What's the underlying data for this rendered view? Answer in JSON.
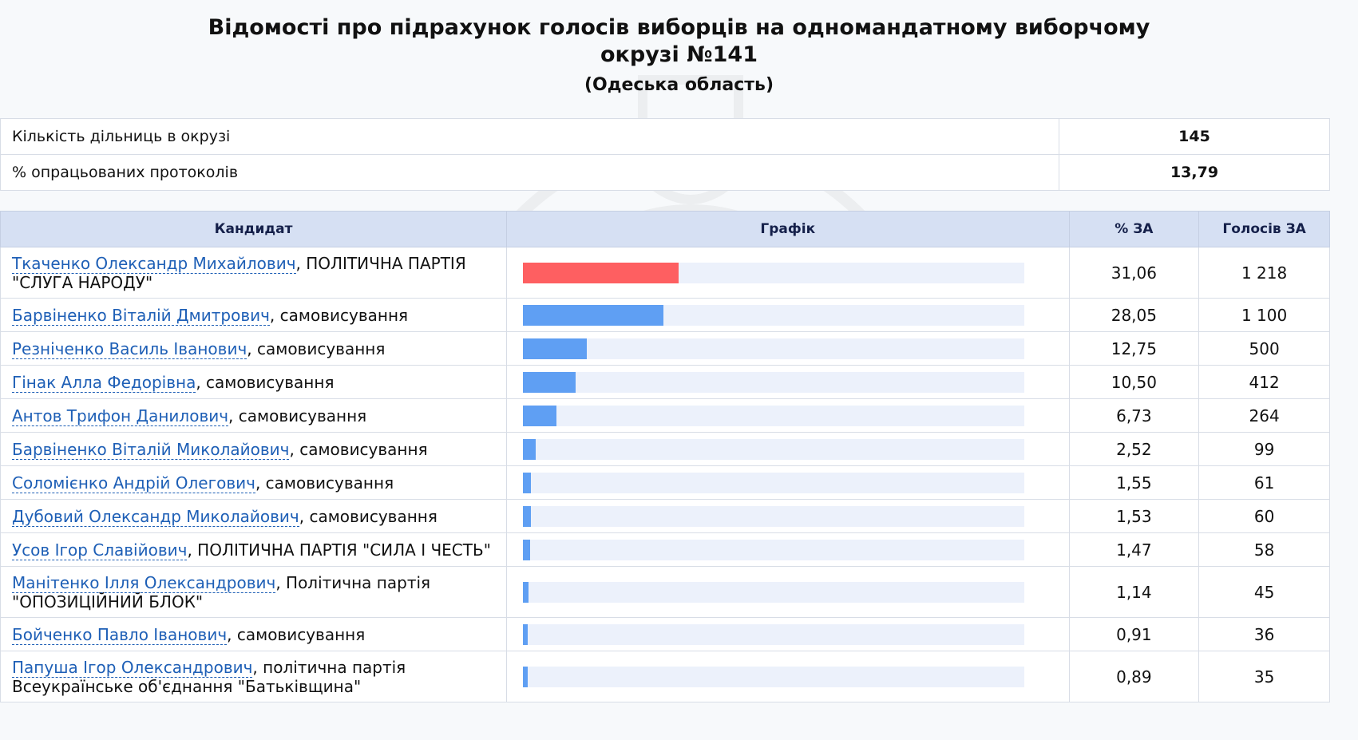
{
  "page": {
    "title": "Відомості про підрахунок голосів виборців на одномандатному виборчому окрузі №141",
    "region": "(Одеська область)"
  },
  "summary": [
    {
      "label": "Кількість дільниць в окрузі",
      "value": "145"
    },
    {
      "label": "% опрацьованих протоколів",
      "value": "13,79"
    }
  ],
  "table": {
    "headers": {
      "candidate": "Кандидат",
      "chart": "Графік",
      "percent": "% ЗА",
      "votes": "Голосів ЗА"
    }
  },
  "candidates": [
    {
      "name": "Ткаченко Олександр Михайлович",
      "party": ", ПОЛІТИЧНА ПАРТІЯ \"СЛУГА НАРОДУ\"",
      "percent": "31,06",
      "votes": "1 218"
    },
    {
      "name": "Барвіненко Віталій Дмитрович",
      "party": ", самовисування",
      "percent": "28,05",
      "votes": "1 100"
    },
    {
      "name": "Резніченко Василь Іванович",
      "party": ", самовисування",
      "percent": "12,75",
      "votes": "500"
    },
    {
      "name": "Гінак Алла Федорівна",
      "party": ", самовисування",
      "percent": "10,50",
      "votes": "412"
    },
    {
      "name": "Антов Трифон Данилович",
      "party": ", самовисування",
      "percent": "6,73",
      "votes": "264"
    },
    {
      "name": "Барвіненко Віталій Миколайович",
      "party": ", самовисування",
      "percent": "2,52",
      "votes": "99"
    },
    {
      "name": "Соломієнко Андрій Олегович",
      "party": ", самовисування",
      "percent": "1,55",
      "votes": "61"
    },
    {
      "name": "Дубовий Олександр Миколайович",
      "party": ", самовисування",
      "percent": "1,53",
      "votes": "60"
    },
    {
      "name": "Усов Ігор Славійович",
      "party": ", ПОЛІТИЧНА ПАРТІЯ \"СИЛА І ЧЕСТЬ\"",
      "percent": "1,47",
      "votes": "58"
    },
    {
      "name": "Манітенко Ілля Олександрович",
      "party": ", Політична партія \"ОПОЗИЦІЙНИЙ БЛОК\"",
      "percent": "1,14",
      "votes": "45"
    },
    {
      "name": "Бойченко Павло Іванович",
      "party": ", самовисування",
      "percent": "0,91",
      "votes": "36"
    },
    {
      "name": "Папуша Ігор Олександрович",
      "party": ", політична партія Всеукраїнське об'єднання \"Батьківщина\"",
      "percent": "0,89",
      "votes": "35"
    }
  ],
  "colors": {
    "leader_bar": "#fe5f61",
    "bar": "#5f9ff3",
    "track": "#ecf1fb",
    "header_bg": "#d6e0f3"
  },
  "chart_data": {
    "type": "bar",
    "categories": [
      "Ткаченко Олександр Михайлович",
      "Барвіненко Віталій Дмитрович",
      "Резніченко Василь Іванович",
      "Гінак Алла Федорівна",
      "Антов Трифон Данилович",
      "Барвіненко Віталій Миколайович",
      "Соломієнко Андрій Олегович",
      "Дубовий Олександр Миколайович",
      "Усов Ігор Славійович",
      "Манітенко Ілля Олександрович",
      "Бойченко Павло Іванович",
      "Папуша Ігор Олександрович"
    ],
    "values": [
      31.06,
      28.05,
      12.75,
      10.5,
      6.73,
      2.52,
      1.55,
      1.53,
      1.47,
      1.14,
      0.91,
      0.89
    ],
    "xlim": [
      0,
      100
    ],
    "title": "Графік"
  }
}
